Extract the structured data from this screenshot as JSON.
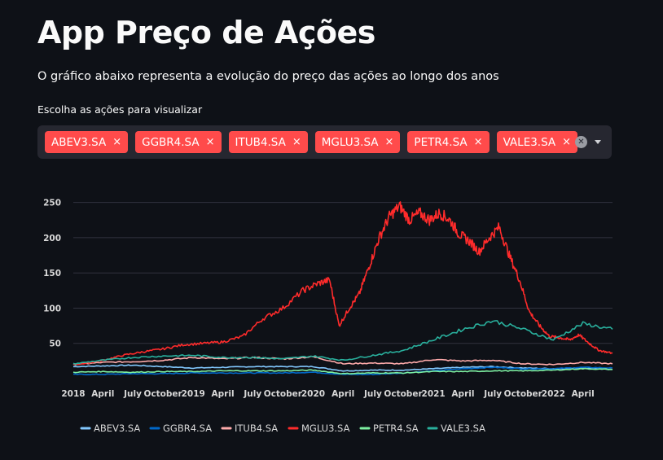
{
  "header": {
    "title": "App Preço de Ações",
    "subtitle": "O gráfico abaixo representa a evolução do preço das ações ao longo dos anos"
  },
  "selector": {
    "label": "Escolha as ações para visualizar",
    "selected": [
      "ABEV3.SA",
      "GGBR4.SA",
      "ITUB4.SA",
      "MGLU3.SA",
      "PETR4.SA",
      "VALE3.SA"
    ],
    "remove_glyph": "×",
    "clear_icon": "clear-icon",
    "dropdown_icon": "chevron-down-icon",
    "tag_color": "#ff4b4b"
  },
  "chart_data": {
    "type": "line",
    "title": "",
    "xlabel": "",
    "ylabel": "",
    "ylim": [
      0,
      260
    ],
    "xlim": [
      "2018-01-01",
      "2022-06-30"
    ],
    "y_ticks": [
      50,
      100,
      150,
      200,
      250
    ],
    "x_ticks": [
      {
        "label": "2018",
        "date": "2018-01-01"
      },
      {
        "label": "April",
        "date": "2018-04-01"
      },
      {
        "label": "July",
        "date": "2018-07-01"
      },
      {
        "label": "October",
        "date": "2018-10-01"
      },
      {
        "label": "2019",
        "date": "2019-01-01"
      },
      {
        "label": "April",
        "date": "2019-04-01"
      },
      {
        "label": "July",
        "date": "2019-07-01"
      },
      {
        "label": "October",
        "date": "2019-10-01"
      },
      {
        "label": "2020",
        "date": "2020-01-01"
      },
      {
        "label": "April",
        "date": "2020-04-01"
      },
      {
        "label": "July",
        "date": "2020-07-01"
      },
      {
        "label": "October",
        "date": "2020-10-01"
      },
      {
        "label": "2021",
        "date": "2021-01-01"
      },
      {
        "label": "April",
        "date": "2021-04-01"
      },
      {
        "label": "July",
        "date": "2021-07-01"
      },
      {
        "label": "October",
        "date": "2021-10-01"
      },
      {
        "label": "2022",
        "date": "2022-01-01"
      },
      {
        "label": "April",
        "date": "2022-04-01"
      }
    ],
    "grid": "horizontal",
    "legend": "bottom",
    "series": [
      {
        "name": "ABEV3.SA",
        "color": "#83c9ff",
        "x": [
          "2018-01-01",
          "2018-04-01",
          "2018-07-01",
          "2018-10-01",
          "2019-01-01",
          "2019-04-01",
          "2019-07-01",
          "2019-10-01",
          "2020-01-01",
          "2020-04-01",
          "2020-07-01",
          "2020-10-01",
          "2021-01-01",
          "2021-04-01",
          "2021-07-01",
          "2021-10-01",
          "2022-01-01",
          "2022-04-01",
          "2022-06-30"
        ],
        "values": [
          17,
          18,
          19,
          17,
          15,
          16,
          17,
          17,
          17,
          11,
          12,
          12,
          14,
          16,
          17,
          15,
          14,
          15,
          13
        ]
      },
      {
        "name": "GGBR4.SA",
        "color": "#0068c9",
        "x": [
          "2018-01-01",
          "2018-04-01",
          "2018-07-01",
          "2018-10-01",
          "2019-01-01",
          "2019-04-01",
          "2019-07-01",
          "2019-10-01",
          "2020-01-01",
          "2020-04-01",
          "2020-07-01",
          "2020-10-01",
          "2021-01-01",
          "2021-04-01",
          "2021-07-01",
          "2021-10-01",
          "2022-01-01",
          "2022-04-01",
          "2022-06-30"
        ],
        "values": [
          6,
          6,
          7,
          7,
          8,
          8,
          8,
          8,
          9,
          6,
          6,
          8,
          11,
          14,
          16,
          14,
          14,
          16,
          15
        ]
      },
      {
        "name": "ITUB4.SA",
        "color": "#ffabab",
        "x": [
          "2018-01-01",
          "2018-04-01",
          "2018-07-01",
          "2018-10-01",
          "2019-01-01",
          "2019-04-01",
          "2019-07-01",
          "2019-10-01",
          "2020-01-01",
          "2020-04-01",
          "2020-07-01",
          "2020-10-01",
          "2021-01-01",
          "2021-04-01",
          "2021-07-01",
          "2021-10-01",
          "2022-01-01",
          "2022-04-01",
          "2022-06-30"
        ],
        "values": [
          20,
          23,
          24,
          26,
          30,
          28,
          30,
          28,
          31,
          21,
          22,
          21,
          27,
          25,
          26,
          21,
          20,
          23,
          21
        ]
      },
      {
        "name": "MGLU3.SA",
        "color": "#ff2b2b",
        "x": [
          "2018-01-01",
          "2018-02-15",
          "2018-04-01",
          "2018-06-01",
          "2018-08-01",
          "2018-10-01",
          "2018-12-01",
          "2019-02-01",
          "2019-04-01",
          "2019-06-01",
          "2019-08-01",
          "2019-10-01",
          "2019-12-01",
          "2020-01-15",
          "2020-02-20",
          "2020-03-20",
          "2020-04-20",
          "2020-05-20",
          "2020-06-20",
          "2020-07-20",
          "2020-08-20",
          "2020-09-20",
          "2020-10-20",
          "2020-11-20",
          "2020-12-20",
          "2021-01-20",
          "2021-02-20",
          "2021-03-20",
          "2021-04-20",
          "2021-05-20",
          "2021-06-20",
          "2021-07-20",
          "2021-08-20",
          "2021-09-20",
          "2021-10-20",
          "2021-11-20",
          "2021-12-20",
          "2022-01-20",
          "2022-02-20",
          "2022-03-20",
          "2022-04-20",
          "2022-05-20",
          "2022-06-30"
        ],
        "values": [
          20,
          22,
          26,
          33,
          38,
          42,
          48,
          50,
          52,
          60,
          85,
          100,
          125,
          135,
          140,
          75,
          100,
          120,
          160,
          200,
          230,
          245,
          225,
          235,
          225,
          235,
          225,
          205,
          195,
          180,
          200,
          215,
          175,
          140,
          95,
          75,
          60,
          58,
          55,
          62,
          50,
          40,
          36
        ]
      },
      {
        "name": "PETR4.SA",
        "color": "#7defa1",
        "x": [
          "2018-01-01",
          "2018-04-01",
          "2018-07-01",
          "2018-10-01",
          "2019-01-01",
          "2019-04-01",
          "2019-07-01",
          "2019-10-01",
          "2020-01-01",
          "2020-04-01",
          "2020-07-01",
          "2020-10-01",
          "2021-01-01",
          "2021-04-01",
          "2021-07-01",
          "2021-10-01",
          "2022-01-01",
          "2022-04-01",
          "2022-06-30"
        ],
        "values": [
          9,
          10,
          9,
          10,
          10,
          11,
          11,
          11,
          12,
          7,
          8,
          8,
          10,
          10,
          11,
          11,
          12,
          14,
          13
        ]
      },
      {
        "name": "VALE3.SA",
        "color": "#29b09d",
        "x": [
          "2018-01-01",
          "2018-04-01",
          "2018-07-01",
          "2018-10-01",
          "2019-01-01",
          "2019-04-01",
          "2019-07-01",
          "2019-10-01",
          "2020-01-01",
          "2020-04-01",
          "2020-07-01",
          "2020-10-01",
          "2021-01-01",
          "2021-04-01",
          "2021-07-01",
          "2021-10-01",
          "2022-01-01",
          "2022-04-01",
          "2022-06-30"
        ],
        "values": [
          21,
          26,
          30,
          32,
          33,
          30,
          30,
          28,
          32,
          26,
          33,
          40,
          55,
          70,
          82,
          70,
          55,
          78,
          70
        ]
      }
    ]
  }
}
